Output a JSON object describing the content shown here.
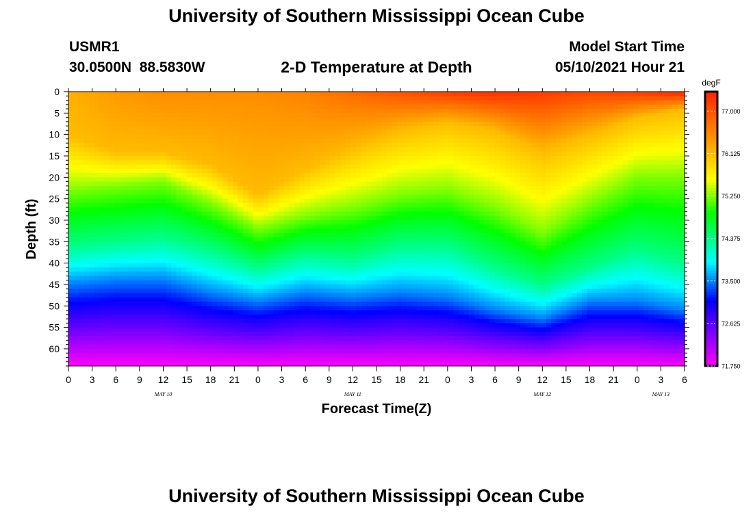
{
  "header": {
    "title": "University of Southern Mississippi Ocean Cube",
    "station_name": "USMR1",
    "station_coords": "30.0500N  88.5830W",
    "model_start_label": "Model Start Time",
    "model_start_value": "05/10/2021 Hour 21",
    "footer_title": "University of Southern Mississippi Ocean Cube"
  },
  "chart_data": {
    "type": "heatmap",
    "title": "2-D Temperature at Depth",
    "xlabel": "Forecast Time(Z)",
    "ylabel": "Depth (ft)",
    "x_start_hour": 0,
    "x_end_hour": 78,
    "x_tick_labels": [
      "0",
      "3",
      "6",
      "9",
      "12",
      "15",
      "18",
      "21",
      "0",
      "3",
      "6",
      "9",
      "12",
      "15",
      "18",
      "21",
      "0",
      "3",
      "6",
      "9",
      "12",
      "15",
      "18",
      "21",
      "0",
      "3",
      "6"
    ],
    "date_labels": [
      {
        "text": "MAY 10",
        "hour": 12
      },
      {
        "text": "MAY 11",
        "hour": 36
      },
      {
        "text": "MAY 12",
        "hour": 60
      },
      {
        "text": "MAY 13",
        "hour": 75
      }
    ],
    "y_ticks": [
      0,
      5,
      10,
      15,
      20,
      25,
      30,
      35,
      40,
      45,
      50,
      55,
      60
    ],
    "ylim": [
      0,
      64
    ],
    "colorbar": {
      "unit": "degF",
      "min": 71.75,
      "max": 77.4,
      "tick_values": [
        77.0,
        76.125,
        75.25,
        74.375,
        73.5,
        72.625,
        71.75
      ],
      "tick_labels": [
        "77.000",
        "76.125",
        "75.250",
        "74.375",
        "73.500",
        "72.625",
        "71.750"
      ]
    },
    "isotherm_depths": {
      "hours": [
        0,
        6,
        12,
        18,
        24,
        30,
        36,
        42,
        48,
        54,
        60,
        66,
        72,
        78
      ],
      "t76_125": [
        10,
        14,
        14,
        17,
        24,
        18,
        13,
        9,
        7,
        9,
        14,
        10,
        6,
        4
      ],
      "t75_25": [
        23,
        22,
        21,
        26,
        32,
        29,
        27,
        24,
        23,
        27,
        33,
        26,
        20,
        20
      ],
      "t74_375": [
        36,
        35,
        34,
        37,
        41,
        38,
        39,
        36,
        36,
        41,
        45,
        41,
        37,
        40
      ],
      "t73_5": [
        45,
        44,
        44,
        47,
        49,
        47,
        48,
        47,
        48,
        51,
        53,
        49,
        49,
        51
      ]
    },
    "surface_temp": {
      "hours": [
        0,
        6,
        12,
        18,
        24,
        30,
        36,
        42,
        48,
        54,
        60,
        66,
        72,
        78
      ],
      "values": [
        76.2,
        76.4,
        76.5,
        76.5,
        76.5,
        76.6,
        76.8,
        77.0,
        77.2,
        77.3,
        77.2,
        77.1,
        77.2,
        77.4
      ]
    },
    "bottom_temp": 71.75
  }
}
